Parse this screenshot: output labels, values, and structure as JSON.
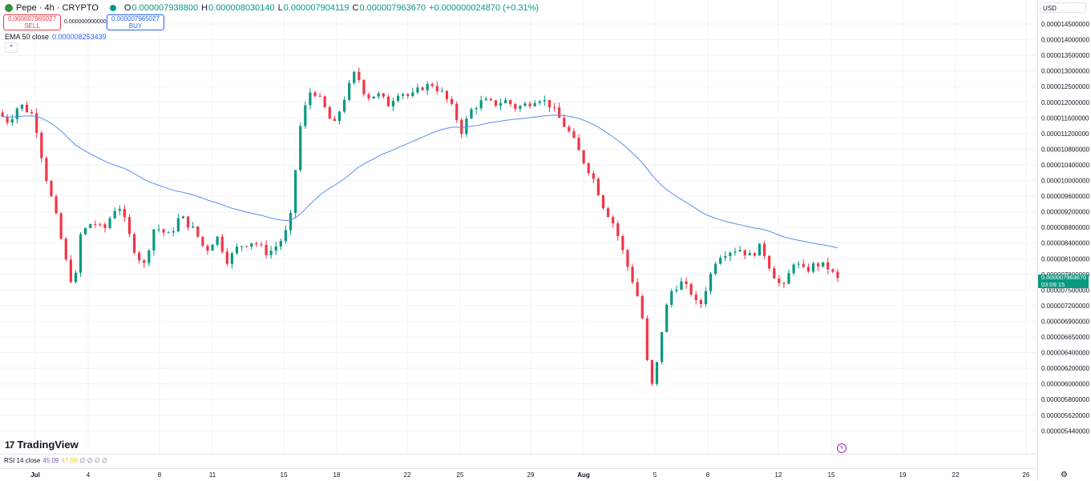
{
  "legend": {
    "symbol_title": "Pepe · 4h · CRYPTO",
    "o_label": "O",
    "o_value": "0.000007938800",
    "h_label": "H",
    "h_value": "0.000008030140",
    "l_label": "L",
    "l_value": "0.000007904119",
    "c_label": "C",
    "c_value": "0.000007963670",
    "change": "+0.000000024870 (+0.31%)"
  },
  "trade": {
    "sell_price": "0.000007965027",
    "sell_label": "SELL",
    "spread": "0.000000000000",
    "buy_price": "0.000007965027",
    "buy_label": "BUY"
  },
  "ema": {
    "label": "EMA 50 close",
    "value": "0.000008253439"
  },
  "rsi": {
    "label": "RSI 14 close",
    "value1": "45.09",
    "value2": "47.09",
    "na": "∅ ∅ ∅ ∅"
  },
  "brand": {
    "name": "TradingView",
    "mark": "17"
  },
  "currency": "USD",
  "last_price": {
    "value": "0.000007963670",
    "countdown": "03:09:15"
  },
  "colors": {
    "up": "#089981",
    "down": "#f23645",
    "ema": "#5b8def",
    "grid": "#f0f3fa"
  },
  "icons": {
    "settings": "gear-icon",
    "collapse": "chevron-up-icon",
    "replay": "lightning-icon"
  },
  "chart_data": {
    "type": "candlestick",
    "symbol": "Pepe",
    "interval": "4h",
    "x_ticks": [
      "Jul",
      "4",
      "8",
      "11",
      "15",
      "18",
      "22",
      "25",
      "29",
      "Aug",
      "5",
      "8",
      "12",
      "15",
      "19",
      "22",
      "26"
    ],
    "y_ticks": [
      "0.000014500000",
      "0.000014000000",
      "0.000013500000",
      "0.000013000000",
      "0.000012500000",
      "0.000012000000",
      "0.000011600000",
      "0.000011200000",
      "0.000010800000",
      "0.000010400000",
      "0.000010000000",
      "0.000009600000",
      "0.000009200000",
      "0.000008800000",
      "0.000008400000",
      "0.000008100000",
      "0.000007800000",
      "0.000007500000",
      "0.000007200000",
      "0.000006900000",
      "0.000006650000",
      "0.000006400000",
      "0.000006200000",
      "0.000006000000",
      "0.000005800000",
      "0.000005620000",
      "0.000005440000"
    ],
    "price_path": [
      [
        0,
        11.78
      ],
      [
        0.03,
        11.55
      ],
      [
        0.06,
        12.0
      ],
      [
        0.1,
        11.7
      ],
      [
        0.13,
        10.2
      ],
      [
        0.16,
        9.2
      ],
      [
        0.19,
        8.2
      ],
      [
        0.21,
        7.75
      ],
      [
        0.225,
        8.8
      ],
      [
        0.26,
        9.1
      ],
      [
        0.29,
        8.9
      ],
      [
        0.33,
        9.5
      ],
      [
        0.37,
        8.6
      ],
      [
        0.4,
        8.2
      ],
      [
        0.43,
        9.0
      ],
      [
        0.47,
        8.8
      ],
      [
        0.5,
        9.2
      ],
      [
        0.54,
        8.9
      ],
      [
        0.57,
        8.5
      ],
      [
        0.6,
        8.8
      ],
      [
        0.63,
        8.3
      ],
      [
        0.66,
        8.6
      ],
      [
        0.7,
        8.7
      ],
      [
        0.74,
        8.45
      ],
      [
        0.77,
        8.65
      ],
      [
        0.8,
        9.0
      ],
      [
        0.83,
        11.5
      ],
      [
        0.86,
        12.5
      ],
      [
        0.89,
        12.0
      ],
      [
        0.92,
        11.4
      ],
      [
        0.95,
        12.2
      ],
      [
        0.98,
        13.0
      ],
      [
        1.01,
        12.2
      ],
      [
        1.04,
        12.3
      ],
      [
        1.07,
        12.0
      ],
      [
        1.1,
        12.4
      ],
      [
        1.13,
        12.2
      ],
      [
        1.16,
        12.5
      ],
      [
        1.19,
        12.6
      ],
      [
        1.22,
        12.3
      ],
      [
        1.25,
        11.8
      ],
      [
        1.27,
        11.3
      ],
      [
        1.3,
        11.9
      ],
      [
        1.33,
        12.1
      ],
      [
        1.36,
        12.0
      ],
      [
        1.39,
        12.1
      ],
      [
        1.42,
        11.9
      ],
      [
        1.45,
        12.0
      ],
      [
        1.48,
        12.2
      ],
      [
        1.51,
        12.0
      ],
      [
        1.54,
        11.6
      ],
      [
        1.57,
        11.2
      ],
      [
        1.6,
        10.6
      ],
      [
        1.63,
        10.1
      ],
      [
        1.66,
        9.4
      ],
      [
        1.69,
        9.0
      ],
      [
        1.72,
        8.3
      ],
      [
        1.75,
        7.7
      ],
      [
        1.77,
        7.1
      ],
      [
        1.785,
        6.1
      ],
      [
        1.8,
        6.3
      ],
      [
        1.82,
        7.1
      ],
      [
        1.84,
        7.7
      ],
      [
        1.87,
        7.9
      ],
      [
        1.9,
        7.7
      ],
      [
        1.92,
        7.4
      ],
      [
        1.94,
        7.8
      ],
      [
        1.97,
        8.4
      ],
      [
        2.0,
        8.5
      ],
      [
        2.03,
        8.55
      ],
      [
        2.06,
        8.4
      ],
      [
        2.09,
        8.6
      ],
      [
        2.12,
        8.1
      ],
      [
        2.15,
        7.75
      ],
      [
        2.18,
        8.3
      ],
      [
        2.21,
        8.1
      ],
      [
        2.24,
        8.25
      ],
      [
        2.27,
        8.2
      ],
      [
        2.3,
        7.95
      ]
    ],
    "ema50": {
      "label": "EMA 50 close",
      "last": "0.000008253439"
    },
    "last_price": "0.000007963670",
    "grid": true
  }
}
